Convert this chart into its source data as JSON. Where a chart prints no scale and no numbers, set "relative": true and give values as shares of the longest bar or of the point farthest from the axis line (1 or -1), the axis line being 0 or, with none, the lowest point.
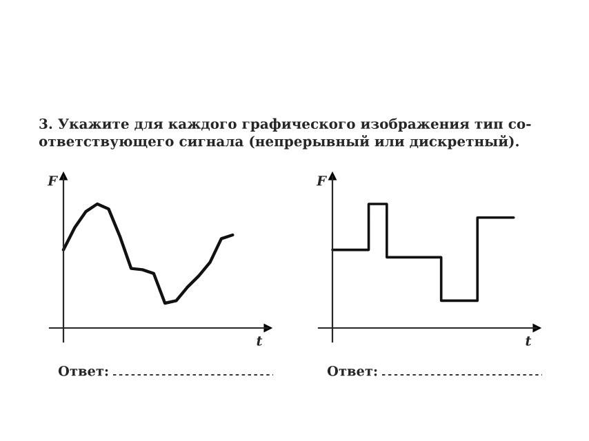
{
  "chart_data": [
    {
      "type": "line",
      "relative": true,
      "title": "3. Укажите для каждого графического изображения тип со-\nответствующего сигнала (непрерывный или дискретный).",
      "xlabel": "t",
      "ylabel": "F",
      "annotations": [
        "Ответ:"
      ],
      "line_style": "solid",
      "categories": [
        null,
        null,
        null,
        null,
        null,
        null,
        null,
        null,
        null,
        null,
        null,
        null,
        null,
        null,
        null,
        null
      ],
      "series": [
        {
          "color": "#111111",
          "values": [
            0.63,
            0.81,
            0.94,
            1.0,
            0.96,
            0.74,
            0.48,
            0.47,
            0.44,
            0.2,
            0.22,
            0.33,
            0.42,
            0.53,
            0.72,
            0.75
          ]
        }
      ]
    },
    {
      "type": "step",
      "relative": true,
      "xlabel": "t",
      "ylabel": "F",
      "annotations": [
        "Ответ:"
      ],
      "line_style": "solid",
      "categories": [
        null,
        null,
        null,
        null,
        null,
        null,
        null,
        null,
        null,
        null,
        null
      ],
      "series": [
        {
          "color": "#111111",
          "values": [
            0.63,
            0.63,
            1.0,
            0.57,
            0.57,
            0.57,
            0.22,
            0.22,
            0.89,
            0.89,
            0.89
          ]
        }
      ]
    }
  ]
}
